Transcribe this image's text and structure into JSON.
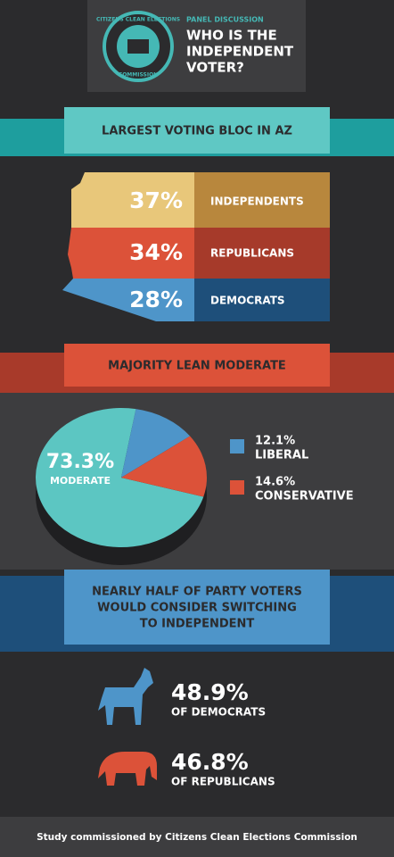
{
  "header": {
    "logo_top": "CITIZENS CLEAN ELECTIONS",
    "logo_bottom": "COMMISSION",
    "kicker": "PANEL DISCUSSION",
    "title_lines": [
      "WHO IS THE",
      "INDEPENDENT",
      "VOTER?"
    ]
  },
  "bloc": {
    "title": "LARGEST VOTING BLOC IN AZ",
    "rows": [
      {
        "percent": "37%",
        "label": "INDEPENDENTS"
      },
      {
        "percent": "34%",
        "label": "REPUBLICANS"
      },
      {
        "percent": "28%",
        "label": "DEMOCRATS"
      }
    ]
  },
  "chart_data": {
    "type": "pie",
    "title": "MAJORITY LEAN MODERATE",
    "categories": [
      "MODERATE",
      "LIBERAL",
      "CONSERVATIVE"
    ],
    "values": [
      73.3,
      12.1,
      14.6
    ],
    "value_labels": [
      "73.3%",
      "12.1%",
      "14.6%"
    ],
    "colors": [
      "#5cc6c2",
      "#4e95c9",
      "#dc5239"
    ]
  },
  "switching": {
    "title_lines": [
      "NEARLY HALF OF PARTY VOTERS",
      "WOULD CONSIDER SWITCHING",
      "TO INDEPENDENT"
    ],
    "items": [
      {
        "percent": "48.9%",
        "label": "OF DEMOCRATS"
      },
      {
        "percent": "46.8%",
        "label": "OF REPUBLICANS"
      }
    ]
  },
  "footer": "Study commissioned by Citizens Clean Elections Commission"
}
